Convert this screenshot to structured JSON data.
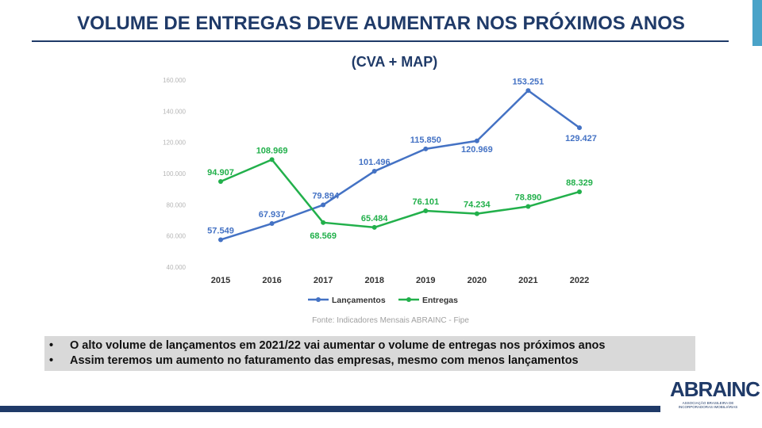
{
  "slide": {
    "title": "VOLUME DE ENTREGAS DEVE AUMENTAR NOS PRÓXIMOS ANOS",
    "bullets": [
      "O alto volume de lançamentos em 2021/22 vai aumentar o volume de entregas nos próximos anos",
      "Assim teremos um aumento no faturamento das empresas, mesmo com menos lançamentos"
    ],
    "bullet_symbol": "•"
  },
  "logo": {
    "wordmark": "ABRAINC",
    "subtitle": "ASSOCIAÇÃO BRASILEIRA DE INCORPORADORAS IMOBILIÁRIAS"
  },
  "colors": {
    "title": "#1f3a68",
    "accent": "#4aa3c8",
    "lancamentos": "#4472c4",
    "entregas": "#22b04b",
    "bullet_box": "#d9d9d9"
  },
  "chart_data": {
    "type": "line",
    "title": "(CVA + MAP)",
    "source": "Fonte: Indicadores Mensais ABRAINC - Fipe",
    "categories": [
      "2015",
      "2016",
      "2017",
      "2018",
      "2019",
      "2020",
      "2021",
      "2022"
    ],
    "ylim": [
      40000,
      160000
    ],
    "yticks": [
      40000,
      60000,
      80000,
      100000,
      120000,
      140000,
      160000
    ],
    "ytick_labels": [
      "40.000",
      "60.000",
      "80.000",
      "100.000",
      "120.000",
      "140.000",
      "160.000"
    ],
    "grid": false,
    "legend_position": "bottom",
    "series": [
      {
        "name": "Lançamentos",
        "color": "#4472c4",
        "values": [
          57549,
          67937,
          79894,
          101496,
          115850,
          120969,
          153251,
          129427
        ],
        "labels": [
          "57.549",
          "67.937",
          "79.894",
          "101.496",
          "115.850",
          "120.969",
          "153.251",
          "129.427"
        ]
      },
      {
        "name": "Entregas",
        "color": "#22b04b",
        "values": [
          94907,
          108969,
          68569,
          65484,
          76101,
          74234,
          78890,
          88329
        ],
        "labels": [
          "94.907",
          "108.969",
          "68.569",
          "65.484",
          "76.101",
          "74.234",
          "78.890",
          "88.329"
        ]
      }
    ]
  }
}
